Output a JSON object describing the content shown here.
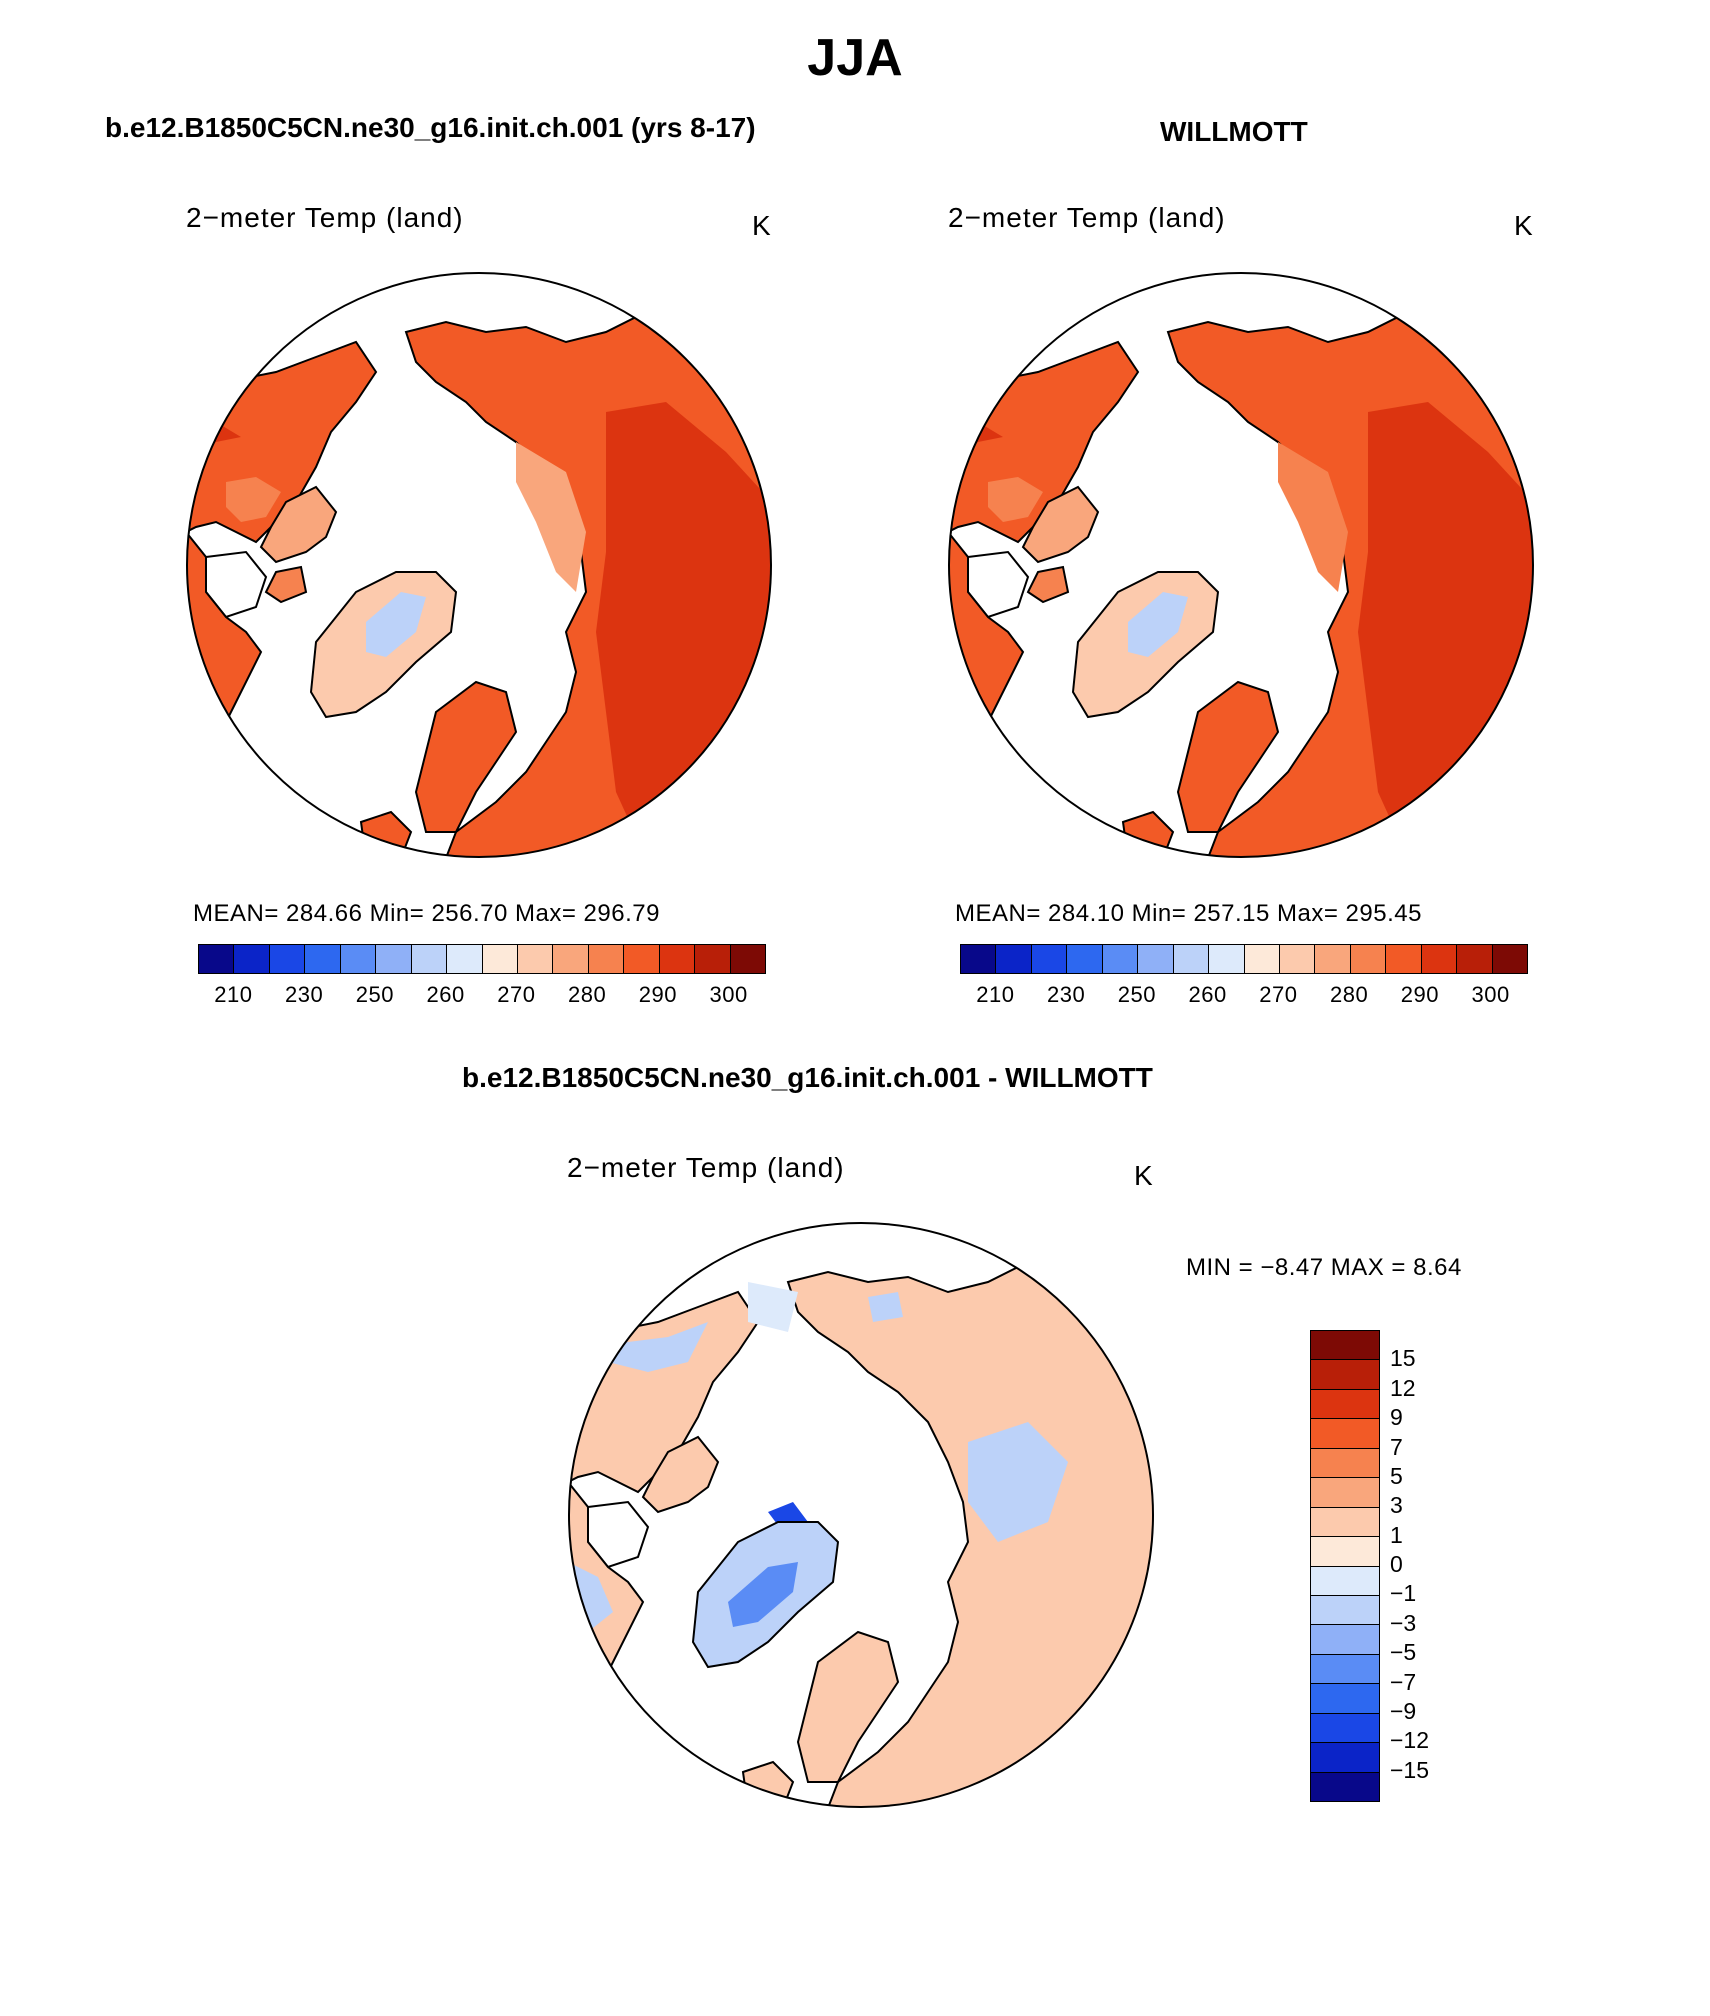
{
  "title": "JJA",
  "panels": [
    {
      "title": "b.e12.B1850C5CN.ne30_g16.init.ch.001 (yrs 8-17)",
      "variable": "2−meter Temp (land)",
      "units": "K",
      "stats": "MEAN= 284.66   Min= 256.70   Max= 296.79"
    },
    {
      "title": "WILLMOTT",
      "variable": "2−meter Temp (land)",
      "units": "K",
      "stats": "MEAN= 284.10   Min= 257.15   Max= 295.45"
    }
  ],
  "abs_colorbar": {
    "colors": [
      "#08088a",
      "#0b24c8",
      "#1a47e6",
      "#2d68f0",
      "#5a8cf5",
      "#8fb0f7",
      "#bcd2f9",
      "#ddeafb",
      "#fde9d9",
      "#fccaad",
      "#f9a67c",
      "#f6824f",
      "#f25a26",
      "#dc3410",
      "#b81f08",
      "#7d0a05"
    ],
    "ticks": [
      "210",
      "230",
      "250",
      "260",
      "270",
      "280",
      "290",
      "300"
    ]
  },
  "diff_panel": {
    "title": "b.e12.B1850C5CN.ne30_g16.init.ch.001 - WILLMOTT",
    "variable": "2−meter Temp (land)",
    "units": "K",
    "minmax": "MIN =    −8.47  MAX =     8.64"
  },
  "diff_colorbar": {
    "colors_top_to_bottom": [
      "#7d0a05",
      "#b81f08",
      "#dc3410",
      "#f25a26",
      "#f6824f",
      "#f9a67c",
      "#fccaad",
      "#fde9d9",
      "#ddeafb",
      "#bcd2f9",
      "#8fb0f7",
      "#5a8cf5",
      "#2d68f0",
      "#1a47e6",
      "#0b24c8",
      "#08088a"
    ],
    "labels_top_to_bottom": [
      "15",
      "12",
      "9",
      "7",
      "5",
      "3",
      "1",
      "0",
      "−1",
      "−3",
      "−5",
      "−7",
      "−9",
      "−12",
      "−15"
    ]
  }
}
